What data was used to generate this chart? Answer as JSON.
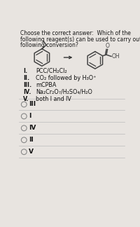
{
  "title_lines": [
    "Choose the correct answer:  Which of the",
    "following reagent(s) can be used to carry out the",
    "following conversion?"
  ],
  "options": [
    [
      "I.",
      "PCC/CH₂Cl₂"
    ],
    [
      "II.",
      "CO₂ followed by H₃O⁺"
    ],
    [
      "III.",
      "mCPBA"
    ],
    [
      "IV.",
      "Na₂Cr₂O₇/H₂SO₄/H₂O"
    ],
    [
      "V.",
      "both I and IV"
    ]
  ],
  "answers": [
    "III",
    "I",
    "IV",
    "II",
    "V"
  ],
  "selected_answer_index": -1,
  "bg_color": "#e8e4e0",
  "text_color": "#1a1a1a",
  "option_text_color": "#111111",
  "radio_color": "#888888",
  "line_color": "#bbbbbb",
  "struct_color": "#444444"
}
